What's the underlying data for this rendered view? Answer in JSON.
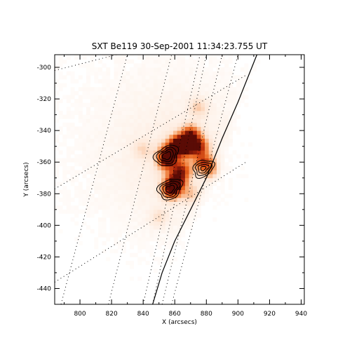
{
  "chart_data": {
    "type": "heatmap",
    "title": "SXT Be119 30-Sep-2001 11:34:23.755 UT",
    "xlabel": "X (arcsecs)",
    "ylabel": "Y (arcsecs)",
    "xlim": [
      784,
      942
    ],
    "ylim": [
      -450,
      -292
    ],
    "xticks": [
      800,
      820,
      840,
      860,
      880,
      900,
      920,
      940
    ],
    "yticks": [
      -300,
      -320,
      -340,
      -360,
      -380,
      -400,
      -420,
      -440
    ],
    "colormap": [
      "#ffffff",
      "#fde4d2",
      "#f6a067",
      "#e8641e",
      "#b52a0c",
      "#5a0b05"
    ],
    "limb": [
      [
        846,
        -450
      ],
      [
        852,
        -430
      ],
      [
        860,
        -410
      ],
      [
        870,
        -390
      ],
      [
        880,
        -370
      ],
      [
        890,
        -345
      ],
      [
        900,
        -322
      ],
      [
        908,
        -302
      ],
      [
        912,
        -292
      ]
    ],
    "emission_blobs": [
      {
        "x": 867,
        "y": -350,
        "peak": 1.0
      },
      {
        "x": 862,
        "y": -349,
        "peak": 0.95
      },
      {
        "x": 856,
        "y": -355,
        "peak": 0.9
      },
      {
        "x": 870,
        "y": -343,
        "peak": 0.85
      },
      {
        "x": 875,
        "y": -350,
        "peak": 0.75
      },
      {
        "x": 878,
        "y": -360,
        "peak": 0.6
      },
      {
        "x": 864,
        "y": -365,
        "peak": 0.7
      },
      {
        "x": 861,
        "y": -372,
        "peak": 0.8
      },
      {
        "x": 858,
        "y": -377,
        "peak": 0.95
      },
      {
        "x": 855,
        "y": -360,
        "peak": 0.55
      },
      {
        "x": 884,
        "y": -365,
        "peak": 0.35
      },
      {
        "x": 870,
        "y": -380,
        "peak": 0.2
      },
      {
        "x": 875,
        "y": -325,
        "peak": 0.2
      },
      {
        "x": 840,
        "y": -352,
        "peak": 0.15
      },
      {
        "x": 850,
        "y": -395,
        "peak": 0.15
      }
    ],
    "contour_sources": [
      {
        "x": 855,
        "y": -356,
        "levels": [
          7,
          5.5,
          4,
          2.5
        ]
      },
      {
        "x": 857,
        "y": -377,
        "levels": [
          7,
          5.5,
          4,
          2.5
        ]
      },
      {
        "x": 878,
        "y": -364,
        "levels": [
          6,
          4.5,
          3,
          1.5
        ]
      }
    ]
  }
}
